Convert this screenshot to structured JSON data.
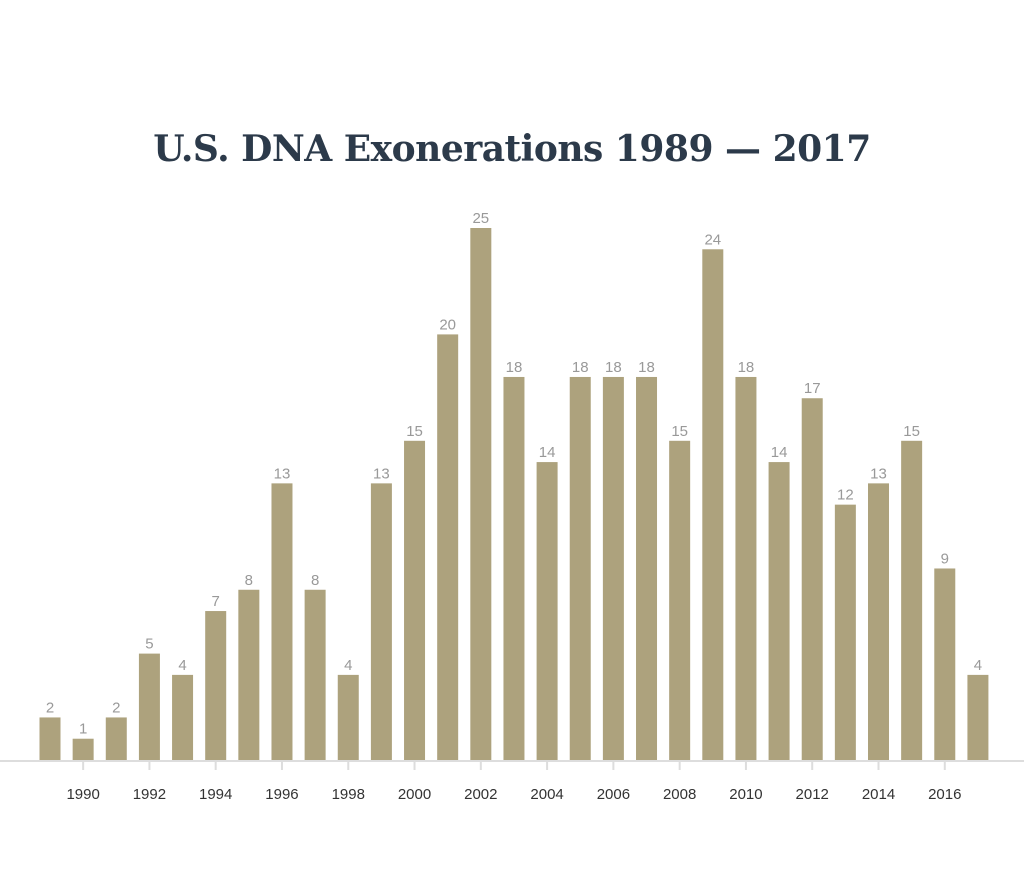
{
  "chart_data": {
    "type": "bar",
    "title": "U.S. DNA Exonerations 1989 — 2017",
    "xlabel": "",
    "ylabel": "",
    "categories": [
      1989,
      1990,
      1991,
      1992,
      1993,
      1994,
      1995,
      1996,
      1997,
      1998,
      1999,
      2000,
      2001,
      2002,
      2003,
      2004,
      2005,
      2006,
      2007,
      2008,
      2009,
      2010,
      2011,
      2012,
      2013,
      2014,
      2015,
      2016,
      2017
    ],
    "values": [
      2,
      1,
      2,
      5,
      4,
      7,
      8,
      13,
      8,
      4,
      13,
      15,
      20,
      25,
      18,
      14,
      18,
      18,
      18,
      15,
      24,
      18,
      14,
      17,
      12,
      13,
      15,
      9,
      4
    ],
    "ylim": [
      0,
      25
    ],
    "x_tick_labels": [
      "1990",
      "1992",
      "1994",
      "1996",
      "1998",
      "2000",
      "2002",
      "2004",
      "2006",
      "2008",
      "2010",
      "2012",
      "2014",
      "2016"
    ],
    "data_labels": true,
    "grid": false,
    "bar_color": "#ada27d"
  }
}
